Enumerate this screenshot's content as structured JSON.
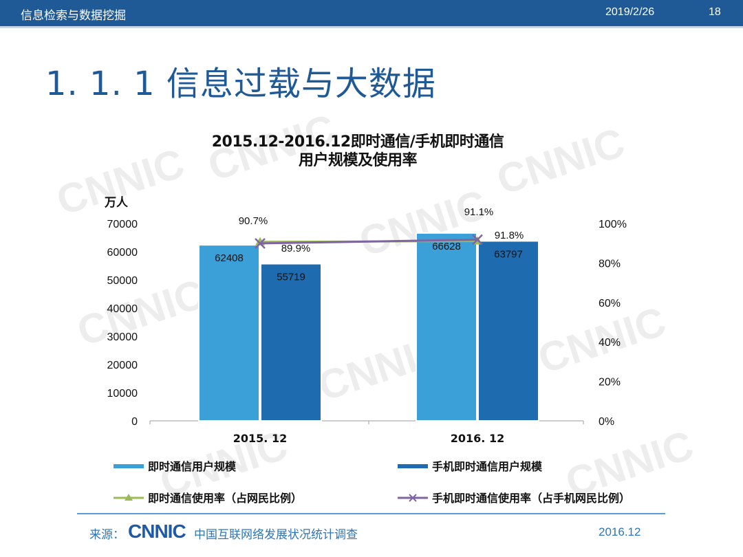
{
  "header": {
    "left_text": "信息检索与数据挖掘",
    "date": "2019/2/26",
    "page": "18"
  },
  "slide_title": "1. 1. 1  信息过载与大数据",
  "watermark_text": "CNNIC",
  "chart_data": {
    "type": "bar",
    "title_line1": "2015.12-2016.12即时通信/手机即时通信",
    "title_line2": "用户规模及使用率",
    "categories": [
      "2015. 12",
      "2016. 12"
    ],
    "y_left_unit": "万人",
    "y_left_ticks": [
      "70000",
      "60000",
      "50000",
      "40000",
      "30000",
      "20000",
      "10000",
      "0"
    ],
    "y_left_range": [
      0,
      70000
    ],
    "y_right_ticks": [
      "100%",
      "80%",
      "60%",
      "40%",
      "20%",
      "0%"
    ],
    "y_right_range": [
      0,
      100
    ],
    "bar_series": [
      {
        "name": "即时通信用户规模",
        "values": [
          62408,
          66628
        ],
        "labels": [
          "62408",
          "66628"
        ],
        "color": "#3b9fd8"
      },
      {
        "name": "手机即时通信用户规模",
        "values": [
          55719,
          63797
        ],
        "labels": [
          "55719",
          "63797"
        ],
        "color": "#1f6bb0"
      }
    ],
    "line_series": [
      {
        "name": "即时通信使用率（占网民比例）",
        "values": [
          90.7,
          91.1
        ],
        "labels": [
          "90.7%",
          "91.1%"
        ],
        "color": "#9bbb59",
        "marker": "triangle"
      },
      {
        "name": "手机即时通信使用率（占手机网民比例）",
        "values": [
          89.9,
          91.8
        ],
        "labels": [
          "89.9%",
          "91.8%"
        ],
        "color": "#8064a2",
        "marker": "x"
      }
    ],
    "legend_position": "bottom"
  },
  "footer": {
    "source_label": "来源：",
    "logo": "CNNIC",
    "org": "中国互联网络发展状况统计调查",
    "date": "2016.12"
  }
}
